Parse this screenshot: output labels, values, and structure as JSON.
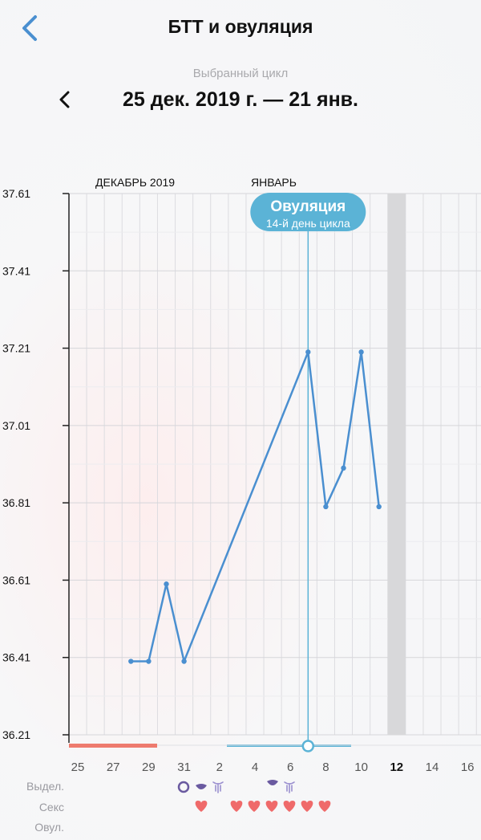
{
  "header": {
    "title": "БТТ и овуляция",
    "cycle_caption": "Выбранный цикл",
    "cycle_range": "25 дек. 2019 г. — 21 янв."
  },
  "colors": {
    "accent": "#4a8fd0",
    "line": "#4a8fd0",
    "ovulation_badge": "#5bb3d6",
    "period_bar": "#ee7b6e",
    "heart": "#ef6a6a",
    "discharge": "#6a5aa0",
    "today_column": "#d8d8da"
  },
  "chart_data": {
    "type": "line",
    "months": [
      "ДЕКАБРЬ 2019",
      "ЯНВАРЬ"
    ],
    "ylim": [
      36.21,
      37.61
    ],
    "y_ticks": [
      "37.61",
      "37.41",
      "37.21",
      "37.01",
      "36.81",
      "36.61",
      "36.41",
      "36.21"
    ],
    "x_ticks": [
      "25",
      "27",
      "29",
      "31",
      "2",
      "4",
      "6",
      "8",
      "10",
      "12",
      "14",
      "16"
    ],
    "highlight_tick": "12",
    "points": [
      {
        "x": "28 дек",
        "y": 36.4
      },
      {
        "x": "29 дек",
        "y": 36.4
      },
      {
        "x": "30 дек",
        "y": 36.6
      },
      {
        "x": "31 дек",
        "y": 36.4
      },
      {
        "x": "7 янв",
        "y": 37.2
      },
      {
        "x": "8 янв",
        "y": 36.8
      },
      {
        "x": "9 янв",
        "y": 36.9
      },
      {
        "x": "10 янв",
        "y": 37.2
      },
      {
        "x": "11 янв",
        "y": 36.8
      }
    ],
    "ovulation": {
      "x": "7 янв",
      "label": "Овуляция",
      "sublabel": "14-й день цикла"
    },
    "today": "12 янв"
  },
  "rows": {
    "discharge_label": "Выдел.",
    "sex_label": "Секс",
    "ovulation_label": "Овул."
  }
}
